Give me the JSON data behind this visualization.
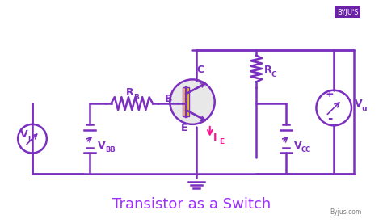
{
  "title": "Transistor as a Switch",
  "title_color": "#9B30FF",
  "title_fontsize": 13,
  "bg_color": "#ffffff",
  "circuit_color": "#7B2FBE",
  "pink_color": "#FF1493",
  "byju_logo_color": "#6B21A8",
  "labels": {
    "Vi": "V",
    "Vi_sub": "i",
    "VBB": "V",
    "VBB_sub": "BB",
    "RB": "R",
    "RB_sub": "B",
    "B": "B",
    "C": "C",
    "E": "E",
    "IE": "I",
    "IE_sub": "E",
    "RC": "R",
    "RC_sub": "C",
    "VCC": "V",
    "VCC_sub": "CC",
    "Vu": "V",
    "Vu_sub": "u",
    "plus": "+",
    "minus": "-"
  },
  "byju_text": "Byjus.com"
}
